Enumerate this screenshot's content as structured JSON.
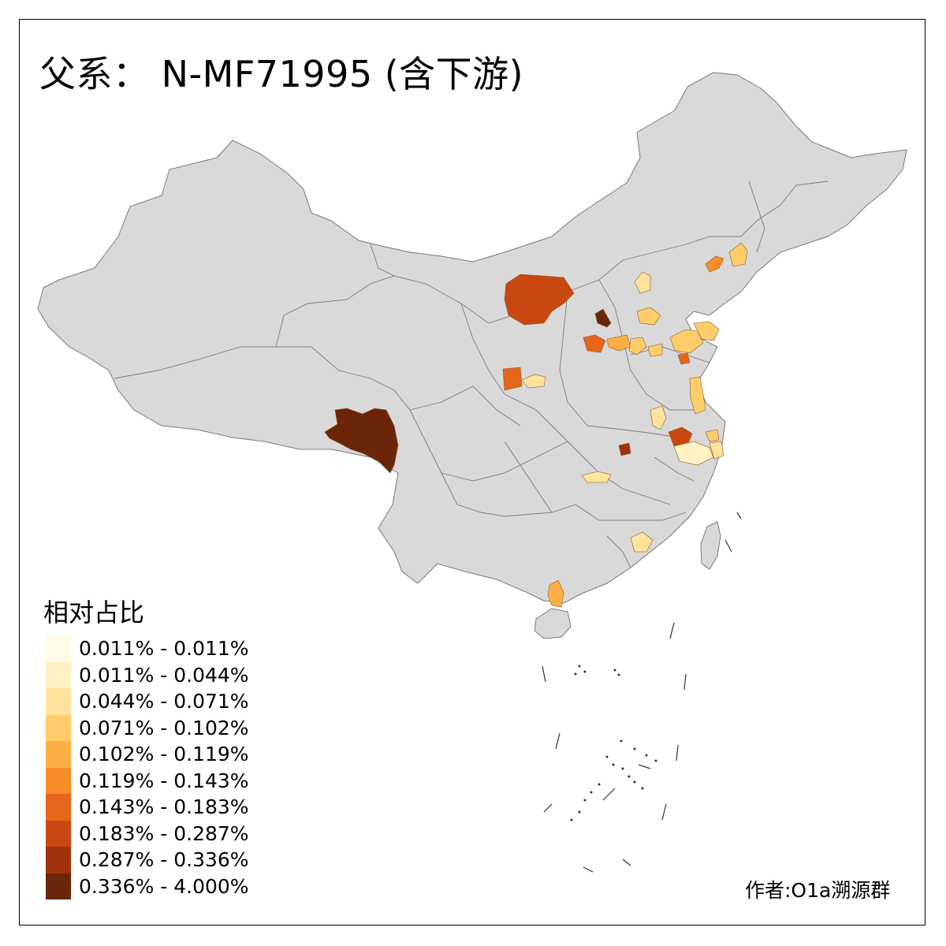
{
  "title": "父系： N-MF71995 (含下游)",
  "legend": {
    "title": "相对占比",
    "items": [
      {
        "label": "0.011% - 0.011%",
        "color": "#fffbe6"
      },
      {
        "label": "0.011% - 0.044%",
        "color": "#fff2c2"
      },
      {
        "label": "0.044% - 0.071%",
        "color": "#fee39d"
      },
      {
        "label": "0.071% - 0.102%",
        "color": "#fecd6a"
      },
      {
        "label": "0.102% - 0.119%",
        "color": "#fdaf45"
      },
      {
        "label": "0.119% - 0.143%",
        "color": "#f78c29"
      },
      {
        "label": "0.143% - 0.183%",
        "color": "#e5661a"
      },
      {
        "label": "0.183% - 0.287%",
        "color": "#c94810"
      },
      {
        "label": "0.287% - 0.336%",
        "color": "#a0330a"
      },
      {
        "label": "0.336% - 4.000%",
        "color": "#6b2508"
      }
    ]
  },
  "credit": "作者:O1a溯源群",
  "colors": {
    "base_land": "#d9d9d9",
    "border": "#7a7a7a"
  }
}
